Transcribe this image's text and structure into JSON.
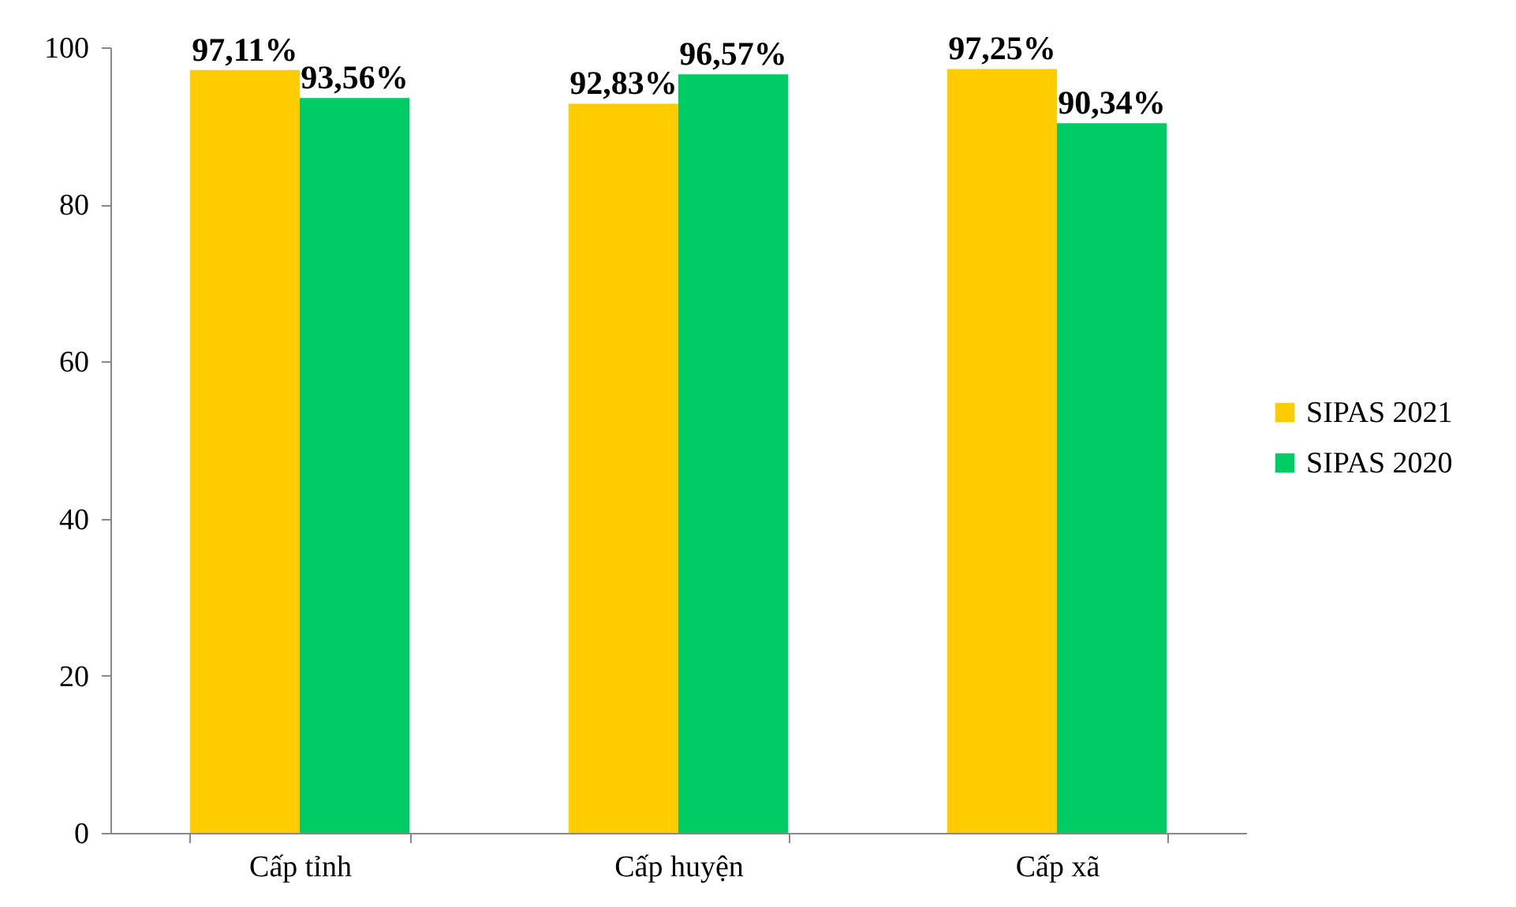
{
  "chart_data": {
    "type": "bar",
    "categories": [
      "Cấp tỉnh",
      "Cấp huyện",
      "Cấp xã"
    ],
    "series": [
      {
        "name": "SIPAS 2021",
        "color": "#ffcc00",
        "values": [
          97.11,
          92.83,
          97.25
        ],
        "value_labels": [
          "97,11%",
          "92,83%",
          "97,25%"
        ]
      },
      {
        "name": "SIPAS 2020",
        "color": "#00cc66",
        "values": [
          93.56,
          96.57,
          90.34
        ],
        "value_labels": [
          "93,56%",
          "96,57%",
          "90,34%"
        ]
      }
    ],
    "ylim": [
      0,
      100
    ],
    "yticks": [
      0,
      20,
      40,
      60,
      80,
      100
    ],
    "grid": false,
    "legend": "right"
  }
}
